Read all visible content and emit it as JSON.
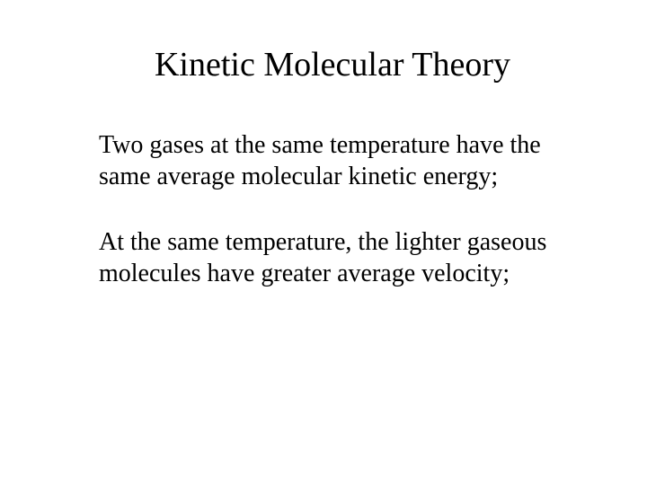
{
  "slide": {
    "title": "Kinetic Molecular Theory",
    "paragraph1": "Two gases at the same temperature have the same average molecular kinetic energy;",
    "paragraph2": "At the same temperature, the lighter gaseous molecules have greater average velocity;",
    "background_color": "#ffffff",
    "text_color": "#000000",
    "font_family": "Times New Roman",
    "title_fontsize": 38,
    "body_fontsize": 28
  }
}
